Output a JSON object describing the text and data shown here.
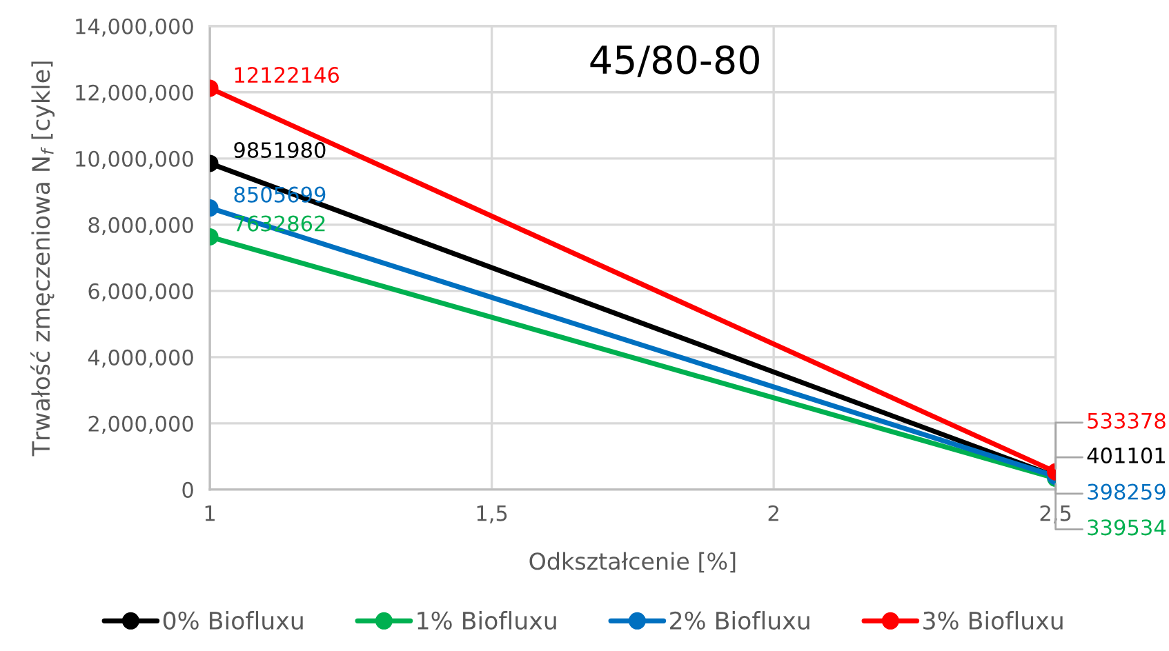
{
  "chart_data": {
    "type": "line",
    "title": "45/80-80",
    "xlabel": "Odkształcenie [%]",
    "ylabel": "Trwałość zmęczeniowa N$_{f}$ [cykle]",
    "x": [
      1,
      2.5
    ],
    "xlim": [
      1,
      2.5
    ],
    "xticks": [
      1,
      {
        "value": 1.5,
        "label": "1,5"
      },
      2,
      {
        "value": 2.5,
        "label": "2,5"
      }
    ],
    "ylim": [
      0,
      14000000
    ],
    "yticks": [
      0,
      {
        "value": 2000000,
        "label": "2,000,000"
      },
      {
        "value": 4000000,
        "label": "4,000,000"
      },
      {
        "value": 6000000,
        "label": "6,000,000"
      },
      {
        "value": 8000000,
        "label": "8,000,000"
      },
      {
        "value": 10000000,
        "label": "10,000,000"
      },
      {
        "value": 12000000,
        "label": "12,000,000"
      },
      {
        "value": 14000000,
        "label": "14,000,000"
      }
    ],
    "grid": true,
    "legend": "bottom",
    "marker": "circle",
    "line_style": "solid",
    "data_labels": true,
    "series": [
      {
        "name": "0% Biofluxu",
        "color": "#000000",
        "values": [
          9851980,
          401101
        ]
      },
      {
        "name": "1% Biofluxu",
        "color": "#00b050",
        "values": [
          7632862,
          339534
        ]
      },
      {
        "name": "2% Biofluxu",
        "color": "#0070c0",
        "values": [
          8505699,
          398259
        ]
      },
      {
        "name": "3% Biofluxu",
        "color": "#ff0000",
        "values": [
          12122146,
          533378
        ]
      }
    ]
  }
}
